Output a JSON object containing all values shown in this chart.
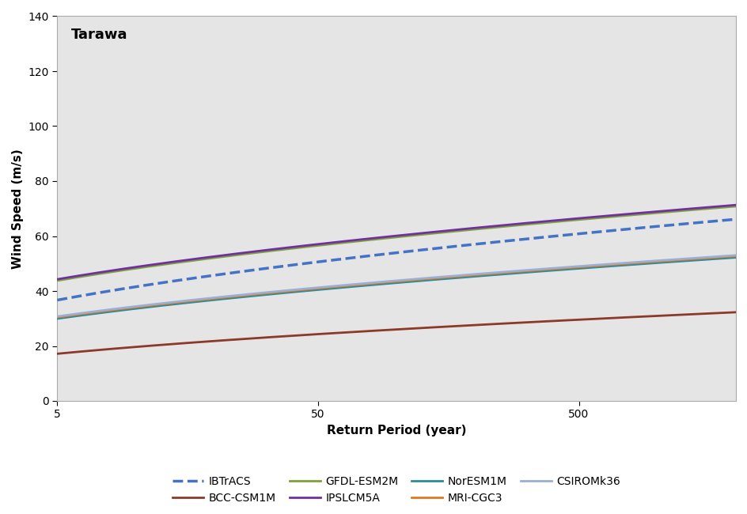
{
  "title": "Tarawa",
  "xlabel": "Return Period (year)",
  "ylabel": "Wind Speed (m/s)",
  "ylim": [
    0,
    140
  ],
  "yticks": [
    0,
    20,
    40,
    60,
    80,
    100,
    120,
    140
  ],
  "xlim_min": 5,
  "xlim_max": 2000,
  "xticks": [
    5,
    50,
    500
  ],
  "xtick_labels": [
    "5",
    "50",
    "500"
  ],
  "background_color": "#e5e5e5",
  "series": [
    {
      "label": "IBTrACS",
      "color": "#4472C4",
      "linestyle": "--",
      "linewidth": 2.5,
      "zorder": 6,
      "a": 13.0,
      "b": 18.5,
      "c": 0.52
    },
    {
      "label": "BCC-CSM1M",
      "color": "#8B3A2A",
      "linestyle": "-",
      "linewidth": 2.0,
      "zorder": 3,
      "a": 5.0,
      "b": 9.5,
      "c": 0.52
    },
    {
      "label": "GFDL-ESM2M",
      "color": "#7EA13A",
      "linestyle": "-",
      "linewidth": 2.0,
      "zorder": 5,
      "a": 22.0,
      "b": 17.0,
      "c": 0.52
    },
    {
      "label": "IPSLCM5A",
      "color": "#7030A0",
      "linestyle": "-",
      "linewidth": 2.0,
      "zorder": 5,
      "a": 22.5,
      "b": 17.0,
      "c": 0.52
    },
    {
      "label": "NorESM1M",
      "color": "#2E8B9A",
      "linestyle": "-",
      "linewidth": 2.0,
      "zorder": 4,
      "a": 12.0,
      "b": 14.0,
      "c": 0.52
    },
    {
      "label": "MRI-CGC3",
      "color": "#E07820",
      "linestyle": "-",
      "linewidth": 2.0,
      "zorder": 4,
      "a": 12.5,
      "b": 14.0,
      "c": 0.52
    },
    {
      "label": "CSIROMk36",
      "color": "#9BAFD4",
      "linestyle": "-",
      "linewidth": 2.0,
      "zorder": 4,
      "a": 12.8,
      "b": 14.0,
      "c": 0.52
    }
  ],
  "legend_order": [
    "IBTrACS",
    "BCC-CSM1M",
    "GFDL-ESM2M",
    "IPSLCM5A",
    "NorESM1M",
    "MRI-CGC3",
    "CSIROMk36"
  ],
  "legend_ncol": 4,
  "legend_fontsize": 10,
  "title_fontsize": 13,
  "axis_fontsize": 11,
  "tick_fontsize": 10
}
